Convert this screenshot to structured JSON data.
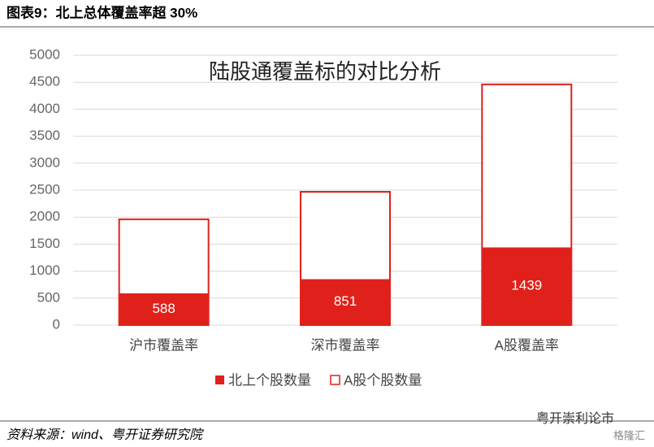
{
  "header": "图表9：北上总体覆盖率超 30%",
  "chart_data": {
    "type": "bar",
    "barmode": "overlay",
    "title": "陆股通覆盖标的对比分析",
    "categories": [
      "沪市覆盖率",
      "深市覆盖率",
      "A股覆盖率"
    ],
    "series": [
      {
        "name": "北上个股数量",
        "color": "#e0211b",
        "values": [
          588,
          851,
          1439
        ]
      },
      {
        "name": "A股个股数量",
        "color": "#ffffff",
        "edge_color": "#e0211b",
        "values": [
          1960,
          2470,
          4460
        ]
      }
    ],
    "ylim": [
      0,
      5000
    ],
    "yticks": [
      0,
      500,
      1000,
      1500,
      2000,
      2500,
      3000,
      3500,
      4000,
      4500,
      5000
    ],
    "grid": true,
    "legend": "bottom"
  },
  "source": "资料来源：wind、粤开证券研究院",
  "watermark": "粤开崇利论市",
  "watermark2": "格隆汇"
}
